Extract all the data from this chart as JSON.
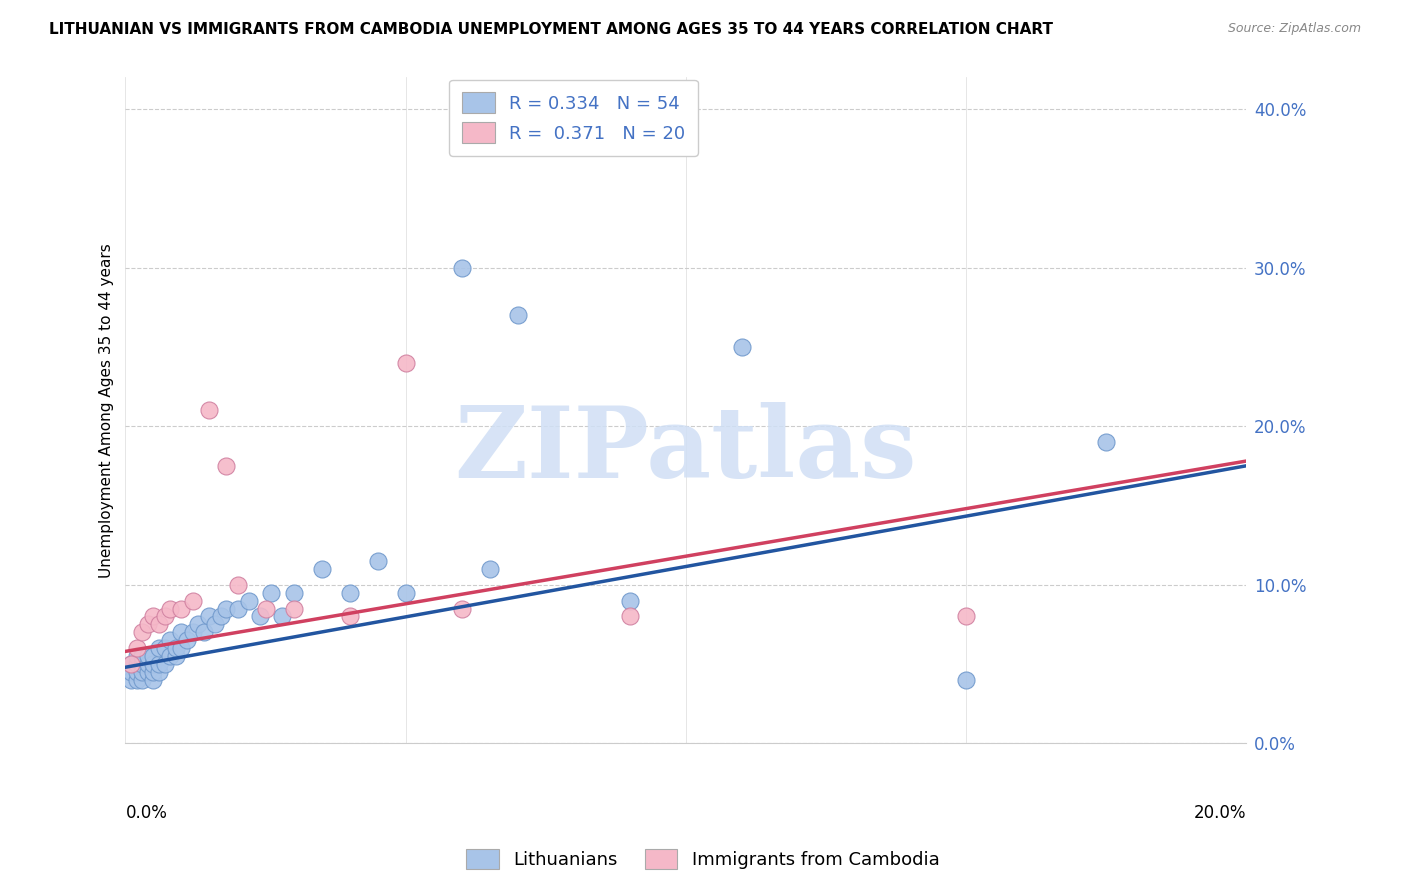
{
  "title": "LITHUANIAN VS IMMIGRANTS FROM CAMBODIA UNEMPLOYMENT AMONG AGES 35 TO 44 YEARS CORRELATION CHART",
  "source": "Source: ZipAtlas.com",
  "ylabel": "Unemployment Among Ages 35 to 44 years",
  "legend_label_blue": "Lithuanians",
  "legend_label_pink": "Immigrants from Cambodia",
  "R_blue": 0.334,
  "N_blue": 54,
  "R_pink": 0.371,
  "N_pink": 20,
  "blue_color": "#a8c4e8",
  "pink_color": "#f5b8c8",
  "blue_line_color": "#2255a0",
  "pink_line_color": "#d04060",
  "blue_scatter_x": [
    0.001,
    0.001,
    0.001,
    0.002,
    0.002,
    0.002,
    0.002,
    0.003,
    0.003,
    0.003,
    0.003,
    0.004,
    0.004,
    0.004,
    0.005,
    0.005,
    0.005,
    0.005,
    0.006,
    0.006,
    0.006,
    0.007,
    0.007,
    0.008,
    0.008,
    0.009,
    0.009,
    0.01,
    0.01,
    0.011,
    0.012,
    0.013,
    0.014,
    0.015,
    0.016,
    0.017,
    0.018,
    0.02,
    0.022,
    0.024,
    0.026,
    0.028,
    0.03,
    0.035,
    0.04,
    0.045,
    0.05,
    0.06,
    0.065,
    0.07,
    0.09,
    0.11,
    0.15,
    0.175
  ],
  "blue_scatter_y": [
    0.04,
    0.045,
    0.05,
    0.04,
    0.045,
    0.05,
    0.055,
    0.04,
    0.045,
    0.05,
    0.055,
    0.045,
    0.05,
    0.055,
    0.04,
    0.045,
    0.05,
    0.055,
    0.045,
    0.05,
    0.06,
    0.05,
    0.06,
    0.055,
    0.065,
    0.055,
    0.06,
    0.06,
    0.07,
    0.065,
    0.07,
    0.075,
    0.07,
    0.08,
    0.075,
    0.08,
    0.085,
    0.085,
    0.09,
    0.08,
    0.095,
    0.08,
    0.095,
    0.11,
    0.095,
    0.115,
    0.095,
    0.3,
    0.11,
    0.27,
    0.09,
    0.25,
    0.04,
    0.19
  ],
  "pink_scatter_x": [
    0.001,
    0.002,
    0.003,
    0.004,
    0.005,
    0.006,
    0.007,
    0.008,
    0.01,
    0.012,
    0.015,
    0.018,
    0.02,
    0.025,
    0.03,
    0.04,
    0.05,
    0.06,
    0.09,
    0.15
  ],
  "pink_scatter_y": [
    0.05,
    0.06,
    0.07,
    0.075,
    0.08,
    0.075,
    0.08,
    0.085,
    0.085,
    0.09,
    0.21,
    0.175,
    0.1,
    0.085,
    0.085,
    0.08,
    0.24,
    0.085,
    0.08,
    0.08
  ],
  "blue_line_x0": 0.0,
  "blue_line_y0": 0.048,
  "blue_line_x1": 0.2,
  "blue_line_y1": 0.175,
  "pink_line_x0": 0.0,
  "pink_line_y0": 0.058,
  "pink_line_x1": 0.2,
  "pink_line_y1": 0.178,
  "xmin": 0.0,
  "xmax": 0.2,
  "ymin": 0.0,
  "ymax": 0.42,
  "yticks": [
    0.0,
    0.1,
    0.2,
    0.3,
    0.4
  ],
  "ytick_labels": [
    "0.0%",
    "10.0%",
    "20.0%",
    "30.0%",
    "40.0%"
  ],
  "xtick_labels_show": [
    "0.0%",
    "20.0%"
  ],
  "grid_color": "#cccccc",
  "background_color": "#ffffff",
  "watermark_text": "ZIPatlas",
  "watermark_color": "#d0dff5",
  "title_fontsize": 11,
  "source_fontsize": 9,
  "axis_label_fontsize": 11,
  "tick_label_fontsize": 12,
  "legend_fontsize": 13
}
